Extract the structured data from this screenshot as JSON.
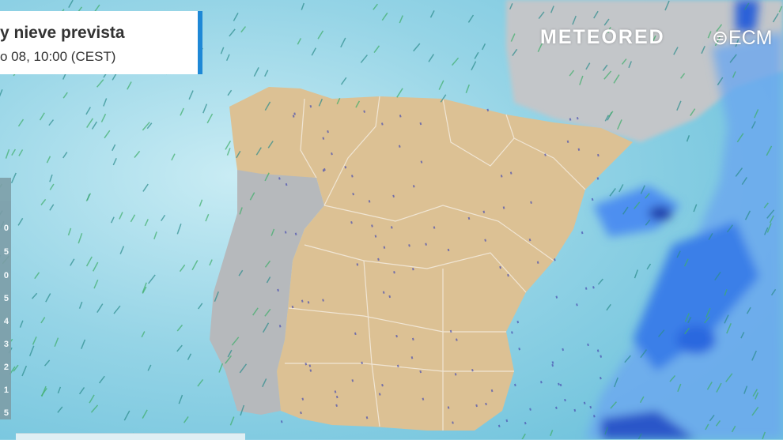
{
  "header": {
    "title": "y nieve prevista",
    "subtitle": "o 08, 10:00 (CEST)",
    "accent_color": "#1e88d6"
  },
  "legend": {
    "labels": [
      "0",
      "5",
      "0",
      "5",
      "4",
      "3",
      "2",
      "1",
      "5"
    ]
  },
  "branding": {
    "logo": "METEORED",
    "partner": "ECM"
  },
  "colors": {
    "sea": "#8fd0e4",
    "spain_land": "#dcc194",
    "other_land": "#b9bcbf",
    "precipitation": "#2f7ee6"
  }
}
